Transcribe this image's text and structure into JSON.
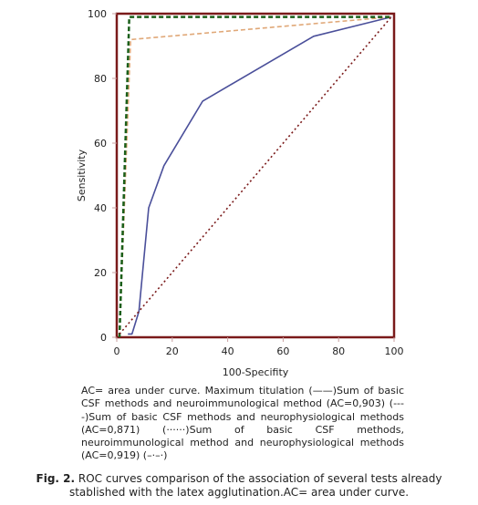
{
  "chart_data": {
    "type": "line",
    "xlabel": "100-Specifity",
    "ylabel": "Sensitivity",
    "xlim": [
      0,
      100
    ],
    "ylim": [
      0,
      100
    ],
    "x_ticks": [
      "0",
      "20",
      "40",
      "60",
      "80",
      "100"
    ],
    "y_ticks": [
      "0",
      "20",
      "40",
      "60",
      "80",
      "100"
    ],
    "grid": false,
    "series": [
      {
        "color": "#4a4f9a",
        "style": "solid",
        "points": [
          [
            4,
            1
          ],
          [
            5.5,
            1
          ],
          [
            8,
            8
          ],
          [
            11.5,
            40
          ],
          [
            17,
            53
          ],
          [
            31,
            73
          ],
          [
            71,
            93
          ],
          [
            99,
            99
          ]
        ]
      },
      {
        "color": "#e0a878",
        "style": "dashed",
        "points": [
          [
            1,
            0
          ],
          [
            5,
            92
          ],
          [
            99,
            99
          ]
        ]
      },
      {
        "color": "#1a5f1a",
        "style": "dashed",
        "points": [
          [
            1,
            0
          ],
          [
            4.5,
            99
          ],
          [
            99,
            99
          ]
        ]
      },
      {
        "color": "#7a1a1a",
        "style": "dotted",
        "points": [
          [
            1,
            1
          ],
          [
            99,
            99
          ]
        ]
      }
    ]
  },
  "note": "AC= area under curve. Maximum titulation (——)Sum of basic CSF methods and neuroimmunological method (AC=0,903) (----)Sum of basic CSF methods and neurophysiological methods (AC=0,871) (······)Sum of basic CSF methods, neuroimmunological method and neurophysiological methods (AC=0,919) (–·–·)",
  "caption_label": "Fig. 2.",
  "caption_text": " ROC curves comparison of the association of several tests already stablished with the latex agglutination.AC= area under curve.",
  "colors": {
    "frame": "#7a1a1a",
    "axis_tick_marks": "#c8a0a0"
  }
}
